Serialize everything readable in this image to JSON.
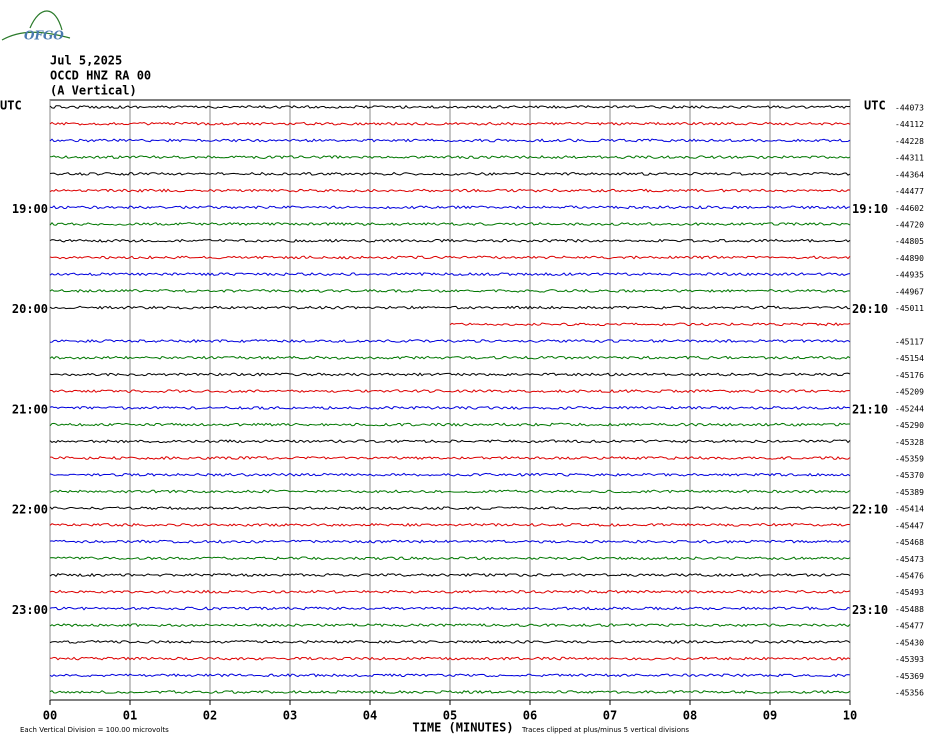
{
  "chart_data": {
    "type": "helicorder",
    "logo": "OFGO",
    "title_lines": [
      "Jul 5,2025",
      "OCCD HNZ RA 00",
      "(A Vertical)"
    ],
    "time_zone_label": "UTC",
    "hour_labels": [
      {
        "trace": 6,
        "left": "19:00",
        "right": "19:10"
      },
      {
        "trace": 12,
        "left": "20:00",
        "right": "20:10"
      },
      {
        "trace": 18,
        "left": "21:00",
        "right": "21:10"
      },
      {
        "trace": 24,
        "left": "22:00",
        "right": "22:10"
      },
      {
        "trace": 30,
        "left": "23:00",
        "right": "23:10"
      }
    ],
    "trace_colors": [
      "#000000",
      "#dd0000",
      "#0000dd",
      "#007700"
    ],
    "trace_values": [
      -44073,
      -44112,
      -44228,
      -44311,
      -44364,
      -44477,
      -44602,
      -44720,
      -44805,
      -44890,
      -44935,
      -44967,
      -45011,
      null,
      -45117,
      -45154,
      -45176,
      -45209,
      -45244,
      -45290,
      -45328,
      -45359,
      -45370,
      -45389,
      -45414,
      -45447,
      -45468,
      -45473,
      -45476,
      -45493,
      -45488,
      -45477,
      -45430,
      -45393,
      -45369,
      -45356
    ],
    "partial_trace": {
      "index": 13,
      "start_minute": 5
    },
    "xlim": [
      0,
      10
    ],
    "xticks": [
      {
        "value": 0,
        "label": "00"
      },
      {
        "value": 1,
        "label": "01"
      },
      {
        "value": 2,
        "label": "02"
      },
      {
        "value": 3,
        "label": "03"
      },
      {
        "value": 4,
        "label": "04"
      },
      {
        "value": 5,
        "label": "05"
      },
      {
        "value": 6,
        "label": "06"
      },
      {
        "value": 7,
        "label": "07"
      },
      {
        "value": 8,
        "label": "08"
      },
      {
        "value": 9,
        "label": "09"
      },
      {
        "value": 10,
        "label": "10"
      }
    ],
    "xlabel": "TIME (MINUTES)",
    "scale_note": "Each Vertical Division =  100.00 microvolts",
    "clip_note": "Traces clipped at plus/minus 5 vertical divisions",
    "grid": true
  }
}
